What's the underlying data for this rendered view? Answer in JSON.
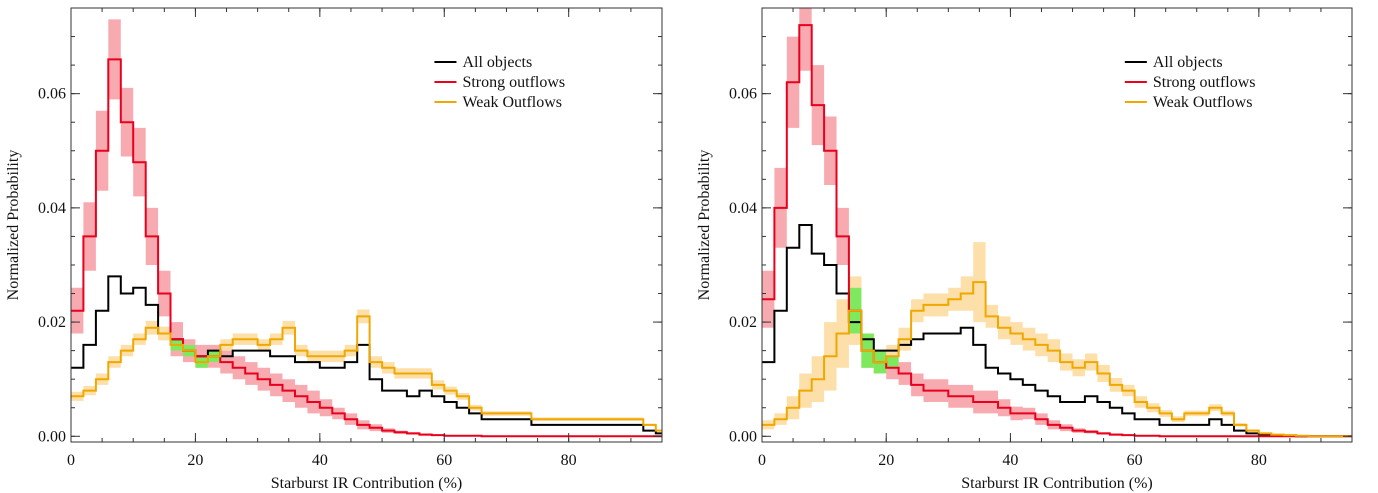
{
  "chart_data": [
    {
      "type": "step",
      "xlabel": "Starburst IR Contribution (%)",
      "ylabel": "Normalized Probability",
      "xlim": [
        0,
        95
      ],
      "ylim": [
        -0.001,
        0.075
      ],
      "xticks": [
        0,
        20,
        40,
        60,
        80
      ],
      "xtick_labels": [
        "0",
        "20",
        "40",
        "60",
        "80"
      ],
      "yticks": [
        0.0,
        0.02,
        0.04,
        0.06
      ],
      "ytick_labels": [
        "0.00",
        "0.02",
        "0.04",
        "0.06"
      ],
      "legend_position": "top-right",
      "series": [
        {
          "name": "All objects",
          "color": "#000000",
          "band": false,
          "x": [
            0,
            2,
            4,
            6,
            8,
            10,
            12,
            14,
            16,
            18,
            20,
            22,
            24,
            26,
            28,
            30,
            32,
            34,
            36,
            38,
            40,
            42,
            44,
            46,
            48,
            50,
            52,
            54,
            56,
            58,
            60,
            62,
            64,
            66,
            68,
            70,
            72,
            74,
            76,
            78,
            80,
            82,
            84,
            86,
            88,
            90,
            92,
            94,
            95
          ],
          "y": [
            0.012,
            0.016,
            0.022,
            0.028,
            0.025,
            0.026,
            0.023,
            0.018,
            0.017,
            0.015,
            0.014,
            0.015,
            0.014,
            0.015,
            0.015,
            0.015,
            0.014,
            0.014,
            0.013,
            0.013,
            0.012,
            0.012,
            0.013,
            0.016,
            0.01,
            0.008,
            0.008,
            0.007,
            0.008,
            0.007,
            0.006,
            0.005,
            0.004,
            0.003,
            0.003,
            0.003,
            0.003,
            0.002,
            0.002,
            0.002,
            0.002,
            0.002,
            0.002,
            0.002,
            0.002,
            0.002,
            0.001,
            0.0005,
            0.0005
          ]
        },
        {
          "name": "Strong outflows",
          "color": "#e8001c",
          "band": true,
          "band_color": "#f7a1a8",
          "x": [
            0,
            2,
            4,
            6,
            8,
            10,
            12,
            14,
            16,
            18,
            20,
            22,
            24,
            26,
            28,
            30,
            32,
            34,
            36,
            38,
            40,
            42,
            44,
            46,
            48,
            50,
            52,
            54,
            56,
            58,
            60,
            62,
            64,
            66,
            68,
            70,
            72,
            74,
            76,
            78,
            80,
            82,
            84,
            86,
            88,
            90,
            92,
            94,
            95
          ],
          "y": [
            0.022,
            0.035,
            0.05,
            0.066,
            0.055,
            0.048,
            0.035,
            0.025,
            0.017,
            0.015,
            0.014,
            0.014,
            0.013,
            0.012,
            0.011,
            0.01,
            0.009,
            0.008,
            0.007,
            0.006,
            0.005,
            0.004,
            0.003,
            0.002,
            0.0015,
            0.001,
            0.0007,
            0.0005,
            0.0003,
            0.0002,
            0.0001,
            0.0001,
            0.0001,
            0.0,
            0.0,
            0.0,
            0.0,
            0.0,
            0.0,
            0.0,
            0.0,
            0.0,
            0.0,
            0.0,
            0.0,
            0.0,
            0.0,
            0.0,
            0.0
          ],
          "band_half_width": [
            0.004,
            0.006,
            0.007,
            0.007,
            0.006,
            0.006,
            0.005,
            0.004,
            0.003,
            0.002,
            0.002,
            0.002,
            0.002,
            0.002,
            0.002,
            0.002,
            0.002,
            0.002,
            0.002,
            0.002,
            0.0015,
            0.001,
            0.001,
            0.0008,
            0.0006,
            0.0004,
            0.0003,
            0.0002,
            0.0002,
            0.0001,
            0.0001,
            0.0,
            0.0,
            0.0,
            0.0,
            0.0,
            0.0,
            0.0,
            0.0,
            0.0,
            0.0,
            0.0,
            0.0,
            0.0,
            0.0,
            0.0,
            0.0,
            0.0,
            0.0
          ]
        },
        {
          "name": "Weak Outflows",
          "color": "#f0a800",
          "band": true,
          "band_color": "#fddca0",
          "x": [
            0,
            2,
            4,
            6,
            8,
            10,
            12,
            14,
            16,
            18,
            20,
            22,
            24,
            26,
            28,
            30,
            32,
            34,
            36,
            38,
            40,
            42,
            44,
            46,
            48,
            50,
            52,
            54,
            56,
            58,
            60,
            62,
            64,
            66,
            68,
            70,
            72,
            74,
            76,
            78,
            80,
            82,
            84,
            86,
            88,
            90,
            92,
            94,
            95
          ],
          "y": [
            0.007,
            0.008,
            0.01,
            0.013,
            0.015,
            0.017,
            0.019,
            0.018,
            0.016,
            0.015,
            0.013,
            0.014,
            0.016,
            0.017,
            0.017,
            0.016,
            0.017,
            0.019,
            0.015,
            0.014,
            0.014,
            0.014,
            0.015,
            0.021,
            0.013,
            0.012,
            0.011,
            0.011,
            0.011,
            0.009,
            0.008,
            0.007,
            0.005,
            0.004,
            0.004,
            0.004,
            0.004,
            0.003,
            0.003,
            0.003,
            0.003,
            0.003,
            0.003,
            0.003,
            0.003,
            0.003,
            0.002,
            0.001,
            0.001
          ],
          "band_half_width": [
            0.0008,
            0.0008,
            0.001,
            0.001,
            0.001,
            0.001,
            0.0012,
            0.0012,
            0.001,
            0.001,
            0.001,
            0.001,
            0.001,
            0.001,
            0.001,
            0.001,
            0.001,
            0.0012,
            0.001,
            0.001,
            0.001,
            0.001,
            0.001,
            0.0012,
            0.001,
            0.001,
            0.0009,
            0.0009,
            0.0009,
            0.0008,
            0.0007,
            0.0006,
            0.0005,
            0.0004,
            0.0004,
            0.0004,
            0.0004,
            0.0003,
            0.0003,
            0.0003,
            0.0003,
            0.0003,
            0.0003,
            0.0003,
            0.0003,
            0.0003,
            0.0002,
            0.0001,
            0.0001
          ]
        }
      ],
      "overlap_highlight": {
        "color": "#7ee85e",
        "x_range": [
          15,
          24
        ]
      }
    },
    {
      "type": "step",
      "xlabel": "Starburst IR Contribution (%)",
      "ylabel": "Normalized Probability",
      "xlim": [
        0,
        95
      ],
      "ylim": [
        -0.001,
        0.075
      ],
      "xticks": [
        0,
        20,
        40,
        60,
        80
      ],
      "xtick_labels": [
        "0",
        "20",
        "40",
        "60",
        "80"
      ],
      "yticks": [
        0.0,
        0.02,
        0.04,
        0.06
      ],
      "ytick_labels": [
        "0.00",
        "0.02",
        "0.04",
        "0.06"
      ],
      "legend_position": "top-right",
      "series": [
        {
          "name": "All objects",
          "color": "#000000",
          "band": false,
          "x": [
            0,
            2,
            4,
            6,
            8,
            10,
            12,
            14,
            16,
            18,
            20,
            22,
            24,
            26,
            28,
            30,
            32,
            34,
            36,
            38,
            40,
            42,
            44,
            46,
            48,
            50,
            52,
            54,
            56,
            58,
            60,
            62,
            64,
            66,
            68,
            70,
            72,
            74,
            76,
            78,
            80,
            82,
            84,
            86,
            88,
            90,
            92,
            94,
            95
          ],
          "y": [
            0.013,
            0.022,
            0.033,
            0.037,
            0.032,
            0.03,
            0.025,
            0.02,
            0.017,
            0.015,
            0.015,
            0.016,
            0.017,
            0.018,
            0.018,
            0.018,
            0.019,
            0.016,
            0.012,
            0.011,
            0.01,
            0.009,
            0.008,
            0.007,
            0.006,
            0.006,
            0.007,
            0.006,
            0.005,
            0.004,
            0.003,
            0.003,
            0.002,
            0.002,
            0.002,
            0.002,
            0.003,
            0.002,
            0.001,
            0.0005,
            0.0003,
            0.0002,
            0.0001,
            0.0,
            0.0,
            0.0,
            0.0,
            0.0,
            0.0
          ]
        },
        {
          "name": "Strong outflows",
          "color": "#e8001c",
          "band": true,
          "band_color": "#f7a1a8",
          "x": [
            0,
            2,
            4,
            6,
            8,
            10,
            12,
            14,
            16,
            18,
            20,
            22,
            24,
            26,
            28,
            30,
            32,
            34,
            36,
            38,
            40,
            42,
            44,
            46,
            48,
            50,
            52,
            54,
            56,
            58,
            60,
            62,
            64,
            66,
            68,
            70,
            72,
            74,
            76,
            78,
            80,
            82,
            84,
            86,
            88,
            90,
            92,
            94,
            95
          ],
          "y": [
            0.024,
            0.04,
            0.062,
            0.072,
            0.058,
            0.05,
            0.035,
            0.022,
            0.015,
            0.013,
            0.012,
            0.011,
            0.009,
            0.008,
            0.008,
            0.007,
            0.007,
            0.006,
            0.006,
            0.005,
            0.004,
            0.004,
            0.003,
            0.002,
            0.0015,
            0.001,
            0.0008,
            0.0005,
            0.0003,
            0.0002,
            0.0001,
            0.0001,
            0.0,
            0.0,
            0.0,
            0.0,
            0.0,
            0.0,
            0.0,
            0.0,
            0.0,
            0.0,
            0.0,
            0.0,
            0.0,
            0.0,
            0.0,
            0.0,
            0.0
          ],
          "band_half_width": [
            0.005,
            0.007,
            0.008,
            0.008,
            0.007,
            0.006,
            0.005,
            0.004,
            0.003,
            0.002,
            0.002,
            0.002,
            0.002,
            0.002,
            0.002,
            0.002,
            0.002,
            0.002,
            0.002,
            0.0015,
            0.0012,
            0.001,
            0.001,
            0.0008,
            0.0006,
            0.0004,
            0.0003,
            0.0002,
            0.0002,
            0.0001,
            0.0001,
            0.0,
            0.0,
            0.0,
            0.0,
            0.0,
            0.0,
            0.0,
            0.0,
            0.0,
            0.0,
            0.0,
            0.0,
            0.0,
            0.0,
            0.0,
            0.0,
            0.0,
            0.0
          ]
        },
        {
          "name": "Weak Outflows",
          "color": "#f0a800",
          "band": true,
          "band_color": "#fddca0",
          "x": [
            0,
            2,
            4,
            6,
            8,
            10,
            12,
            14,
            16,
            18,
            20,
            22,
            24,
            26,
            28,
            30,
            32,
            34,
            36,
            38,
            40,
            42,
            44,
            46,
            48,
            50,
            52,
            54,
            56,
            58,
            60,
            62,
            64,
            66,
            68,
            70,
            72,
            74,
            76,
            78,
            80,
            82,
            84,
            86,
            88,
            90,
            92,
            94,
            95
          ],
          "y": [
            0.002,
            0.003,
            0.005,
            0.008,
            0.01,
            0.014,
            0.018,
            0.022,
            0.015,
            0.013,
            0.014,
            0.017,
            0.022,
            0.023,
            0.023,
            0.024,
            0.025,
            0.027,
            0.021,
            0.019,
            0.018,
            0.017,
            0.016,
            0.015,
            0.013,
            0.012,
            0.013,
            0.011,
            0.009,
            0.008,
            0.006,
            0.005,
            0.004,
            0.003,
            0.004,
            0.004,
            0.005,
            0.004,
            0.002,
            0.001,
            0.0005,
            0.0003,
            0.0002,
            0.0001,
            0.0,
            0.0,
            0.0,
            0.0,
            0.0
          ],
          "band_half_width": [
            0.0008,
            0.001,
            0.002,
            0.003,
            0.004,
            0.006,
            0.006,
            0.006,
            0.003,
            0.002,
            0.002,
            0.002,
            0.002,
            0.002,
            0.002,
            0.002,
            0.003,
            0.007,
            0.002,
            0.002,
            0.002,
            0.002,
            0.002,
            0.002,
            0.0015,
            0.0015,
            0.0015,
            0.0015,
            0.0012,
            0.001,
            0.001,
            0.0008,
            0.0006,
            0.0005,
            0.0005,
            0.0005,
            0.0006,
            0.0005,
            0.0003,
            0.0002,
            0.0001,
            0.0001,
            0.0001,
            0.0,
            0.0,
            0.0,
            0.0,
            0.0,
            0.0
          ]
        }
      ],
      "overlap_highlight": {
        "color": "#7ee85e",
        "x_range": [
          12,
          22
        ]
      }
    }
  ]
}
